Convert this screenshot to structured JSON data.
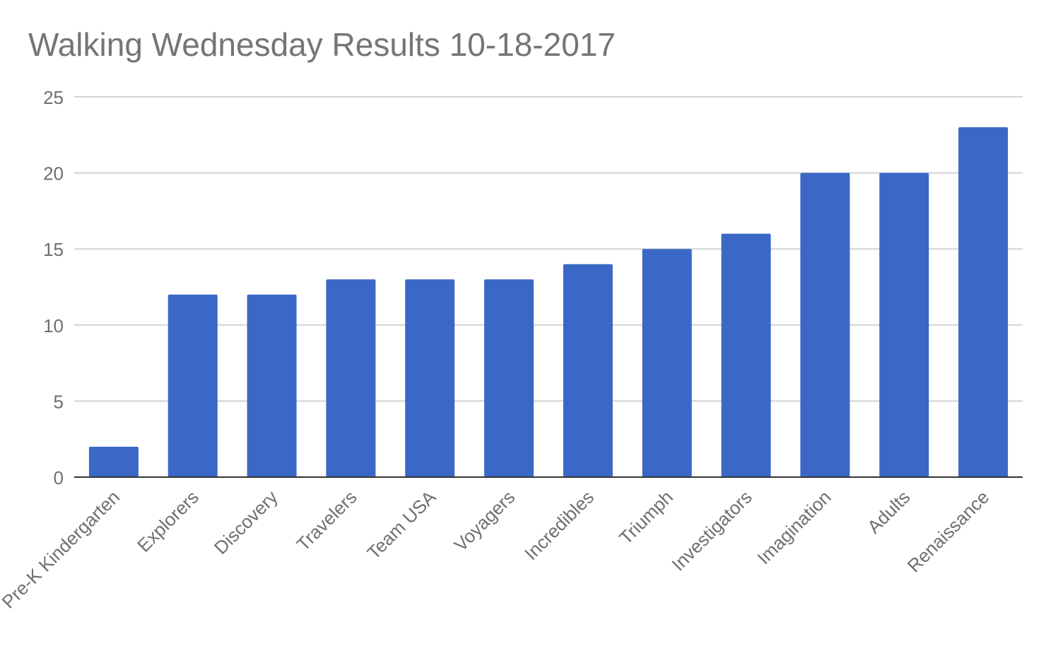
{
  "chart_data": {
    "type": "bar",
    "title": "Walking Wednesday Results 10-18-2017",
    "xlabel": "",
    "ylabel": "",
    "categories": [
      "Pre-K Kindergarten",
      "Explorers",
      "Discovery",
      "Travelers",
      "Team USA",
      "Voyagers",
      "Incredibles",
      "Triumph",
      "Investigators",
      "Imagination",
      "Adults",
      "Renaissance"
    ],
    "values": [
      2,
      12,
      12,
      13,
      13,
      13,
      14,
      15,
      16,
      20,
      20,
      23
    ],
    "ylim": [
      0,
      25
    ],
    "yticks": [
      "0",
      "5",
      "10",
      "15",
      "20",
      "25"
    ],
    "grid": true,
    "legend": "none",
    "colors": {
      "bar": "#3B68C6",
      "grid": "#d3d3d3",
      "baseline": "#333333",
      "tick_text": "#6f6f6f",
      "title_text": "#757575"
    }
  }
}
